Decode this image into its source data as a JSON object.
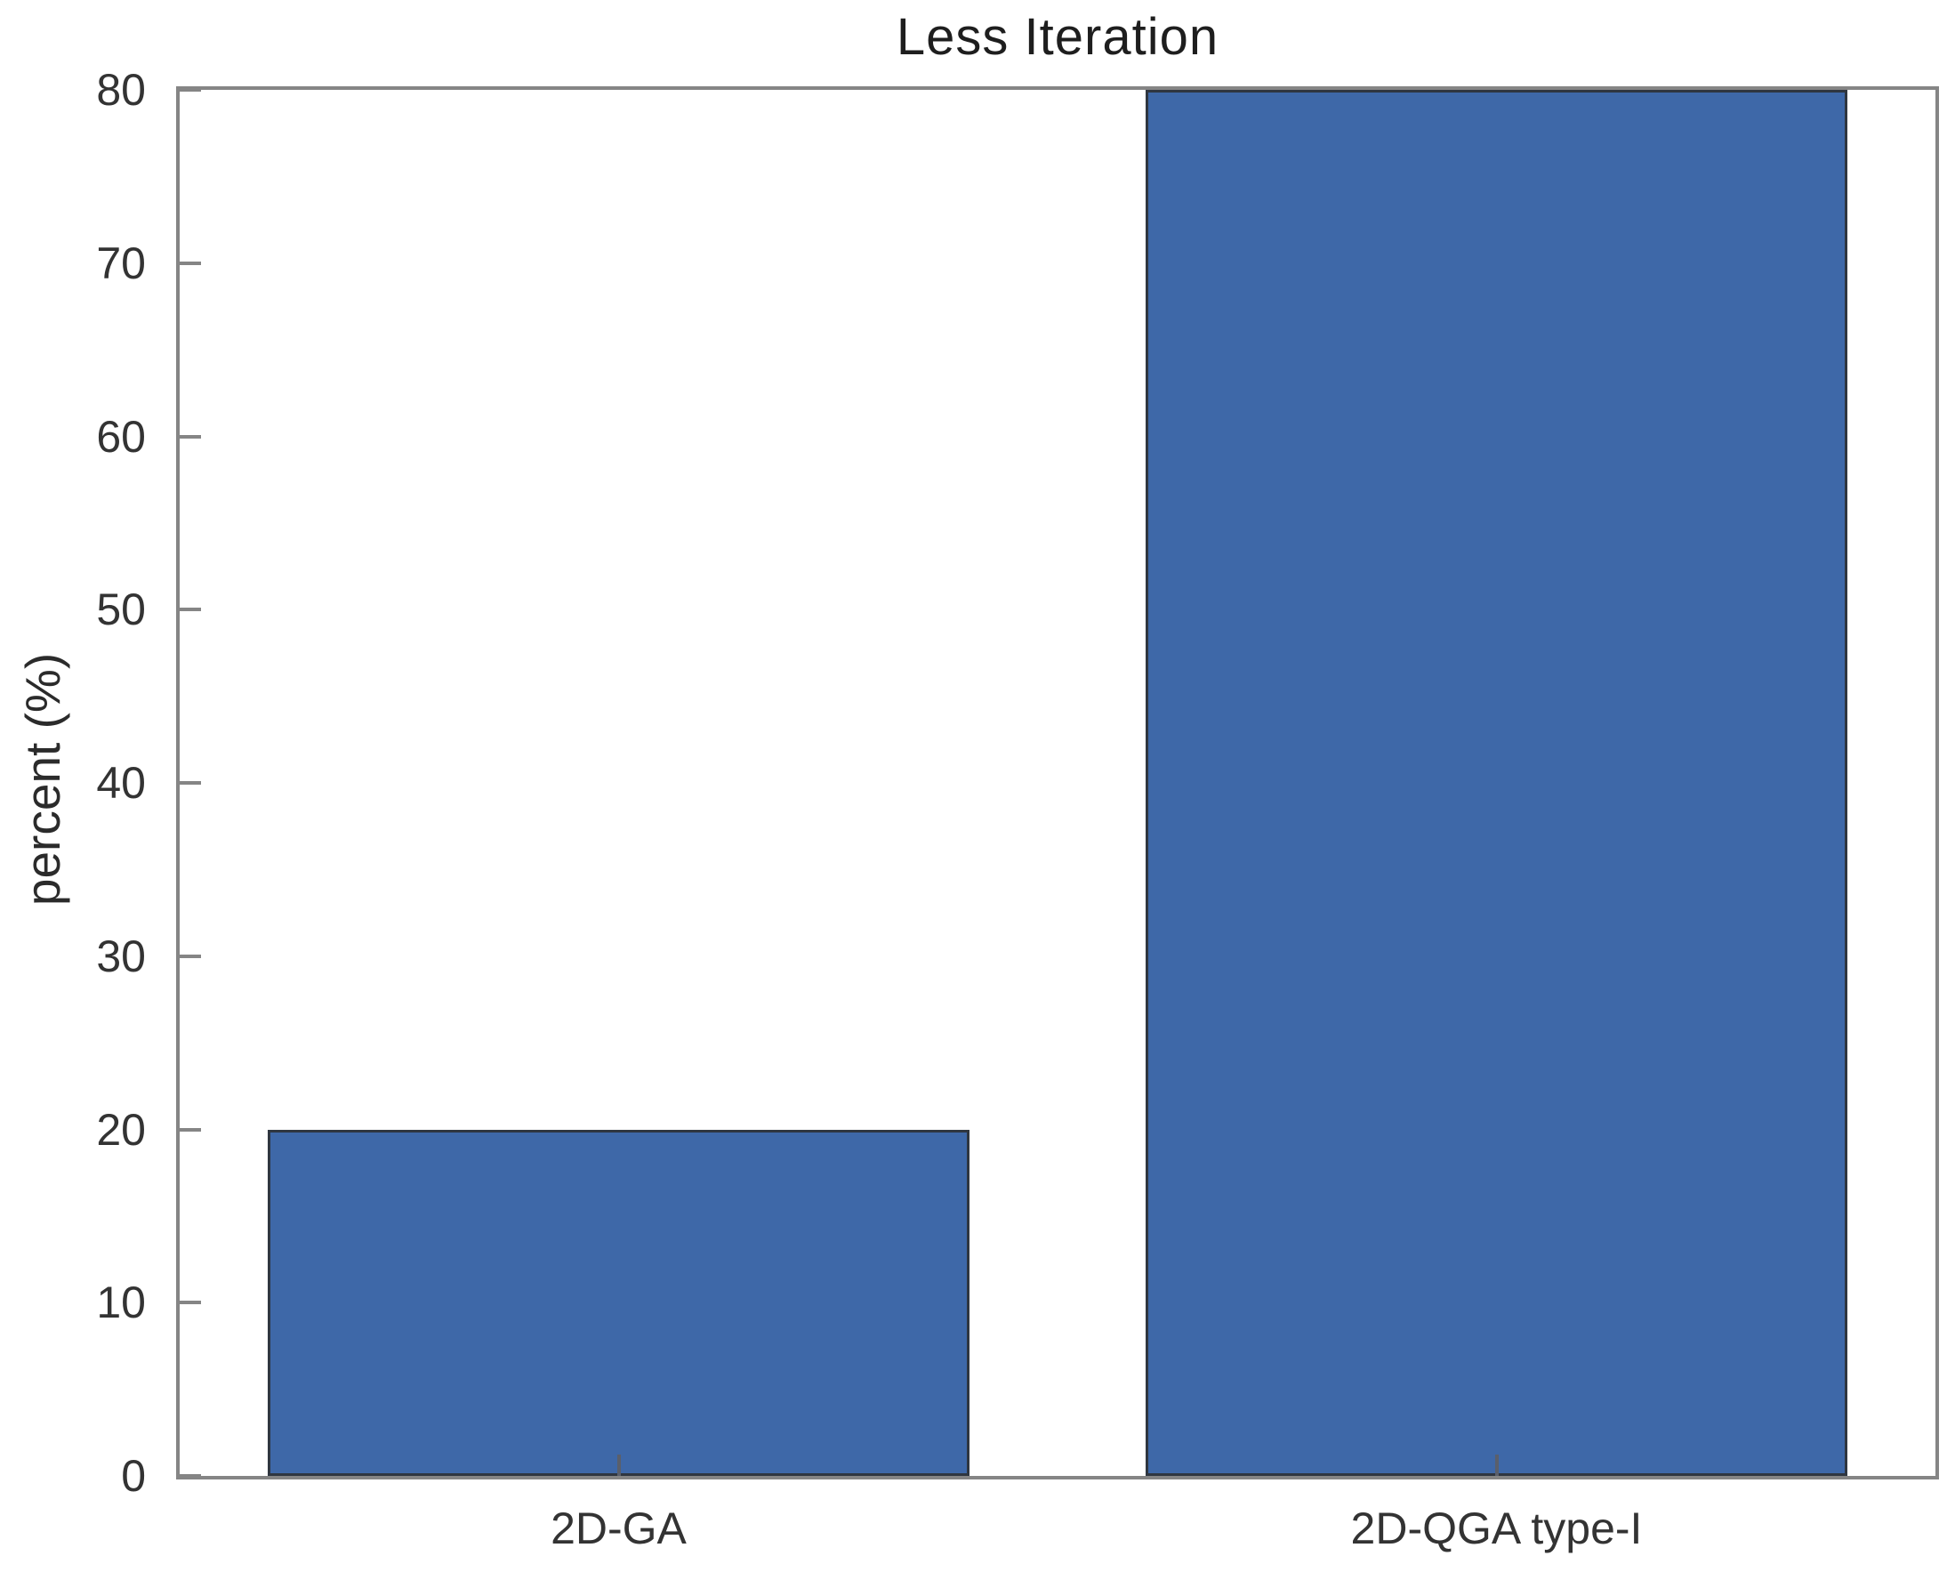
{
  "chart_data": {
    "type": "bar",
    "title": "Less Iteration",
    "xlabel": "",
    "ylabel": "percent (%)",
    "categories": [
      "2D-GA",
      "2D-QGA type-I"
    ],
    "values": [
      20,
      80
    ],
    "ylim": [
      0,
      80
    ],
    "yticks": [
      0,
      10,
      20,
      30,
      40,
      50,
      60,
      70,
      80
    ],
    "grid": false,
    "legend_position": "none",
    "bar_width_fraction": 0.8,
    "colors": {
      "bar_fill": "#3e68a8",
      "bar_edge": "#2f3640",
      "axis": "#858585",
      "tick_label_text": "#333333",
      "title_text": "#1e1e1e",
      "background": "#ffffff"
    }
  }
}
